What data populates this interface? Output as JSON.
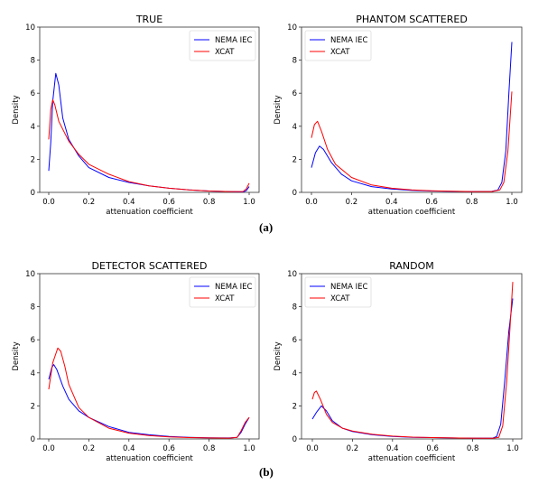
{
  "figure_labels": [
    "(a)",
    "(b)"
  ],
  "colors": {
    "NEMA IEC": "#0000ff",
    "XCAT": "#ff0000"
  },
  "chart_data": [
    {
      "type": "line",
      "title": "TRUE",
      "xlabel": "attenuation coefficient",
      "ylabel": "Density",
      "xlim": [
        0,
        1
      ],
      "ylim": [
        0,
        10
      ],
      "legend": "top-right",
      "xticks": [
        "0.0",
        "0.2",
        "0.4",
        "0.6",
        "0.8",
        "1.0"
      ],
      "yticks": [
        "0",
        "2",
        "4",
        "6",
        "8",
        "10"
      ],
      "series": [
        {
          "name": "NEMA IEC",
          "x": [
            0,
            0.01,
            0.02,
            0.035,
            0.05,
            0.07,
            0.1,
            0.15,
            0.2,
            0.3,
            0.4,
            0.5,
            0.6,
            0.7,
            0.8,
            0.9,
            0.97,
            0.985,
            1.0
          ],
          "y": [
            1.3,
            3,
            5.5,
            7.2,
            6.5,
            4.5,
            3.2,
            2.2,
            1.5,
            0.9,
            0.6,
            0.4,
            0.25,
            0.15,
            0.08,
            0.05,
            0.03,
            0.1,
            0.35
          ]
        },
        {
          "name": "XCAT",
          "x": [
            0,
            0.01,
            0.02,
            0.03,
            0.05,
            0.1,
            0.15,
            0.2,
            0.3,
            0.4,
            0.5,
            0.6,
            0.7,
            0.8,
            0.9,
            0.97,
            0.985,
            1.0
          ],
          "y": [
            3.2,
            5,
            5.6,
            5.3,
            4.3,
            3.1,
            2.3,
            1.7,
            1.1,
            0.65,
            0.4,
            0.25,
            0.15,
            0.08,
            0.05,
            0.05,
            0.2,
            0.55
          ]
        }
      ]
    },
    {
      "type": "line",
      "title": "PHANTOM SCATTERED",
      "xlabel": "attenuation coefficient",
      "ylabel": "Density",
      "xlim": [
        0,
        1
      ],
      "ylim": [
        0,
        10
      ],
      "legend": "top-left",
      "xticks": [
        "0.0",
        "0.2",
        "0.4",
        "0.6",
        "0.8",
        "1.0"
      ],
      "yticks": [
        "0",
        "2",
        "4",
        "6",
        "8",
        "10"
      ],
      "series": [
        {
          "name": "NEMA IEC",
          "x": [
            0,
            0.02,
            0.04,
            0.06,
            0.1,
            0.15,
            0.2,
            0.3,
            0.4,
            0.5,
            0.6,
            0.7,
            0.8,
            0.9,
            0.93,
            0.95,
            0.97,
            0.985,
            1.0
          ],
          "y": [
            1.5,
            2.4,
            2.8,
            2.6,
            1.8,
            1.1,
            0.7,
            0.35,
            0.2,
            0.12,
            0.08,
            0.06,
            0.05,
            0.06,
            0.15,
            0.6,
            2.5,
            6,
            9.1
          ]
        },
        {
          "name": "XCAT",
          "x": [
            0,
            0.015,
            0.03,
            0.05,
            0.08,
            0.12,
            0.2,
            0.3,
            0.4,
            0.5,
            0.6,
            0.7,
            0.8,
            0.9,
            0.94,
            0.96,
            0.98,
            1.0
          ],
          "y": [
            3.3,
            4.1,
            4.3,
            3.7,
            2.6,
            1.7,
            0.9,
            0.45,
            0.25,
            0.15,
            0.1,
            0.07,
            0.05,
            0.05,
            0.15,
            0.6,
            2.5,
            6.1
          ]
        }
      ]
    },
    {
      "type": "line",
      "title": "DETECTOR SCATTERED",
      "xlabel": "attenuation coefficient",
      "ylabel": "Density",
      "xlim": [
        0,
        1
      ],
      "ylim": [
        0,
        10
      ],
      "legend": "top-right",
      "xticks": [
        "0.0",
        "0.2",
        "0.4",
        "0.6",
        "0.8",
        "1.0"
      ],
      "yticks": [
        "0",
        "2",
        "4",
        "6",
        "8",
        "10"
      ],
      "series": [
        {
          "name": "NEMA IEC",
          "x": [
            0,
            0.015,
            0.025,
            0.04,
            0.07,
            0.1,
            0.15,
            0.2,
            0.3,
            0.4,
            0.5,
            0.6,
            0.7,
            0.8,
            0.9,
            0.94,
            0.96,
            0.98,
            1.0
          ],
          "y": [
            3.6,
            4.3,
            4.5,
            4.2,
            3.2,
            2.4,
            1.7,
            1.3,
            0.75,
            0.4,
            0.25,
            0.15,
            0.1,
            0.07,
            0.06,
            0.1,
            0.4,
            0.9,
            1.3
          ]
        },
        {
          "name": "XCAT",
          "x": [
            0,
            0.02,
            0.045,
            0.06,
            0.08,
            0.1,
            0.15,
            0.2,
            0.3,
            0.4,
            0.5,
            0.6,
            0.7,
            0.8,
            0.9,
            0.94,
            0.96,
            0.98,
            1.0
          ],
          "y": [
            3,
            4.6,
            5.5,
            5.3,
            4.4,
            3.3,
            1.9,
            1.3,
            0.65,
            0.35,
            0.2,
            0.12,
            0.08,
            0.06,
            0.05,
            0.1,
            0.5,
            1.0,
            1.3
          ]
        }
      ]
    },
    {
      "type": "line",
      "title": "RANDOM",
      "xlabel": "attenuation coefficient",
      "ylabel": "Density",
      "xlim": [
        0,
        1
      ],
      "ylim": [
        0,
        10
      ],
      "legend": "top-left",
      "xticks": [
        "0.0",
        "0.2",
        "0.4",
        "0.6",
        "0.8",
        "1.0"
      ],
      "yticks": [
        "0",
        "2",
        "4",
        "6",
        "8",
        "10"
      ],
      "series": [
        {
          "name": "NEMA IEC",
          "x": [
            0,
            0.02,
            0.045,
            0.07,
            0.1,
            0.15,
            0.2,
            0.3,
            0.4,
            0.5,
            0.6,
            0.7,
            0.8,
            0.9,
            0.92,
            0.94,
            0.96,
            0.98,
            1.0
          ],
          "y": [
            1.2,
            1.6,
            2,
            1.7,
            1.1,
            0.65,
            0.45,
            0.25,
            0.15,
            0.1,
            0.08,
            0.06,
            0.05,
            0.05,
            0.15,
            0.9,
            3.5,
            6.5,
            8.5
          ]
        },
        {
          "name": "XCAT",
          "x": [
            0,
            0.01,
            0.02,
            0.04,
            0.07,
            0.1,
            0.15,
            0.2,
            0.3,
            0.4,
            0.5,
            0.6,
            0.7,
            0.8,
            0.9,
            0.93,
            0.95,
            0.97,
            0.99,
            1.0
          ],
          "y": [
            2.4,
            2.8,
            2.9,
            2.4,
            1.5,
            1.0,
            0.65,
            0.48,
            0.28,
            0.17,
            0.11,
            0.08,
            0.06,
            0.05,
            0.04,
            0.1,
            0.8,
            3.5,
            7.5,
            9.5
          ]
        }
      ]
    }
  ]
}
